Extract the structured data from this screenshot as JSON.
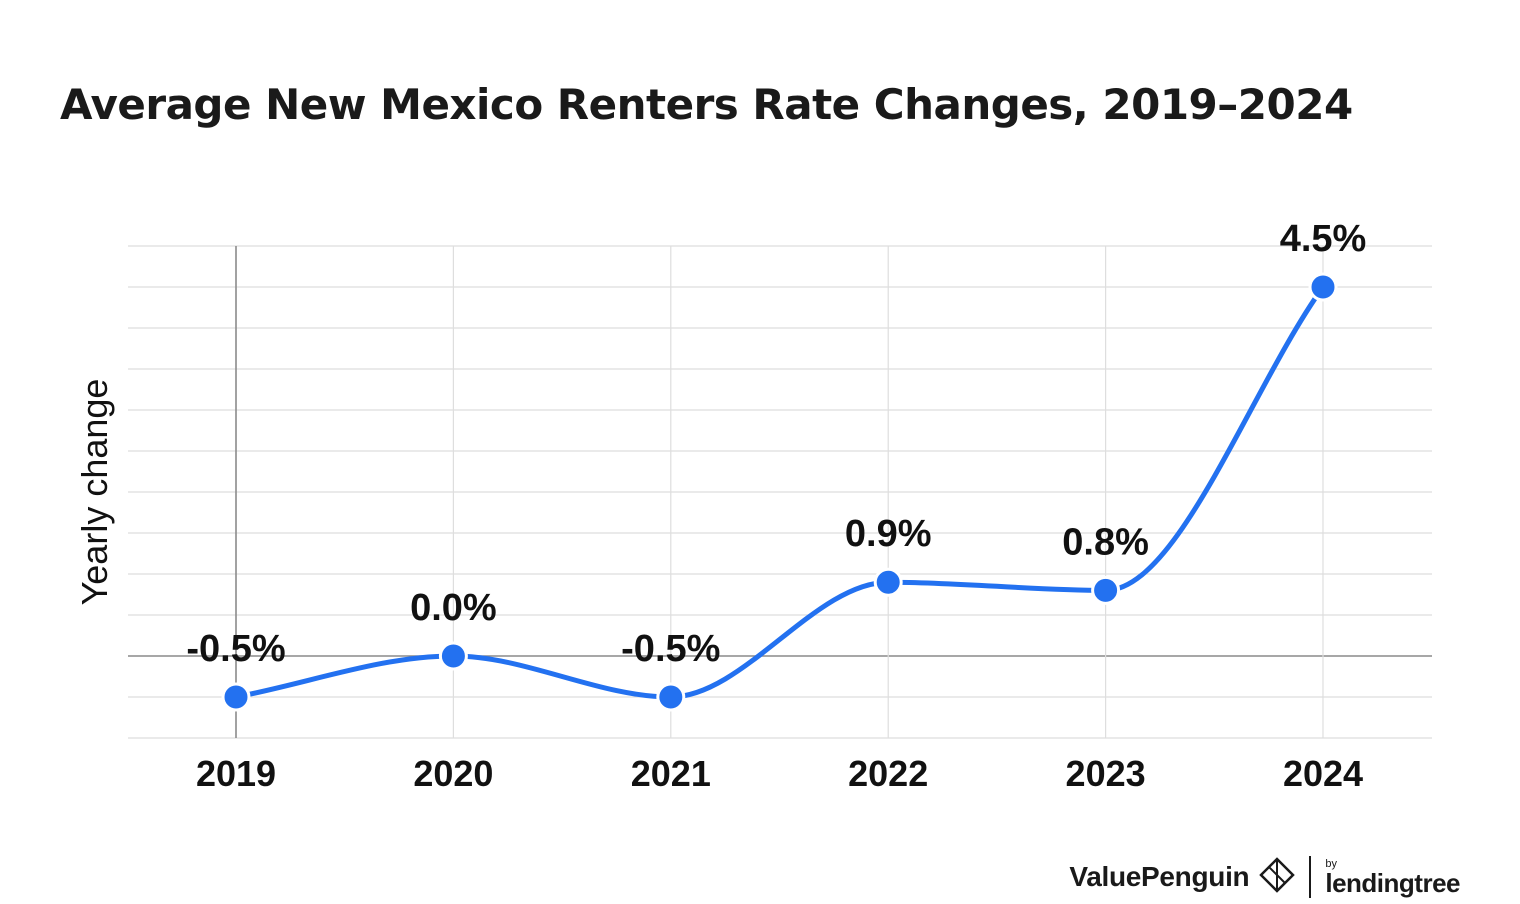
{
  "chart_data": {
    "type": "line",
    "title": "Average New Mexico Renters Rate Changes, 2019–2024",
    "ylabel": "Yearly change",
    "xlabel": "",
    "categories": [
      "2019",
      "2020",
      "2021",
      "2022",
      "2023",
      "2024"
    ],
    "series": [
      {
        "values": [
          -0.5,
          0.0,
          -0.5,
          0.9,
          0.8,
          4.5
        ],
        "data_labels": [
          "-0.5%",
          "0.0%",
          "-0.5%",
          "0.9%",
          "0.8%",
          "4.5%"
        ],
        "color": "#2371f0"
      }
    ],
    "ylim": [
      -1.0,
      5.0
    ],
    "grid": true,
    "legend": "none"
  },
  "brand": {
    "primary": "ValuePenguin",
    "by": "by",
    "parent": "lendingtree",
    "icon": "penguin-diamond-icon"
  }
}
